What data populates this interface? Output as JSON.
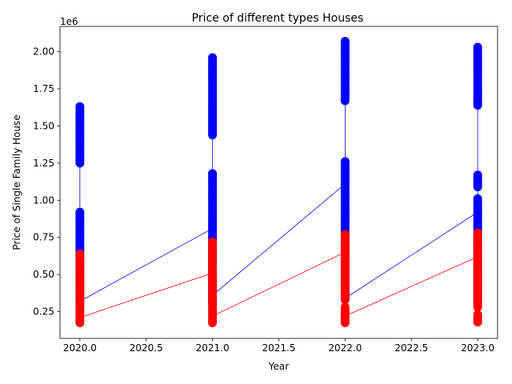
{
  "chart_data": {
    "type": "line",
    "title": "Price of different types Houses",
    "xlabel": "Year",
    "ylabel": "Price of Single Family House",
    "y_offset_label": "1e6",
    "xlim": [
      2019.85,
      2023.15
    ],
    "ylim": [
      70000,
      2170000
    ],
    "x_ticks": [
      2020.0,
      2020.5,
      2021.0,
      2021.5,
      2022.0,
      2022.5,
      2023.0
    ],
    "x_tick_labels": [
      "2020.0",
      "2020.5",
      "2021.0",
      "2021.5",
      "2022.0",
      "2022.5",
      "2023.0"
    ],
    "y_ticks": [
      250000,
      500000,
      750000,
      1000000,
      1250000,
      1500000,
      1750000,
      2000000
    ],
    "y_tick_labels": [
      "0.25",
      "0.50",
      "0.75",
      "1.00",
      "1.25",
      "1.50",
      "1.75",
      "2.00"
    ],
    "grid": false,
    "legend": "none",
    "series": [
      {
        "color": "#0000ff",
        "point_ranges": [
          {
            "x": 2020,
            "low": 300000,
            "high": 920000
          },
          {
            "x": 2020,
            "low": 1250000,
            "high": 1630000
          },
          {
            "x": 2021,
            "low": 300000,
            "high": 1180000
          },
          {
            "x": 2021,
            "low": 1440000,
            "high": 1960000
          },
          {
            "x": 2022,
            "low": 340000,
            "high": 1260000
          },
          {
            "x": 2022,
            "low": 1670000,
            "high": 2070000
          },
          {
            "x": 2023,
            "low": 310000,
            "high": 1010000
          },
          {
            "x": 2023,
            "low": 1090000,
            "high": 1170000
          },
          {
            "x": 2023,
            "low": 1640000,
            "high": 2030000
          }
        ],
        "segments": [
          [
            [
              2020,
              320000
            ],
            [
              2020,
              1630000
            ]
          ],
          [
            [
              2020,
              320000
            ],
            [
              2021,
              810000
            ]
          ],
          [
            [
              2021,
              360000
            ],
            [
              2021,
              1960000
            ]
          ],
          [
            [
              2021,
              360000
            ],
            [
              2022,
              1110000
            ]
          ],
          [
            [
              2022,
              340000
            ],
            [
              2022,
              2070000
            ]
          ],
          [
            [
              2022,
              340000
            ],
            [
              2023,
              920000
            ]
          ],
          [
            [
              2023,
              310000
            ],
            [
              2023,
              2030000
            ]
          ]
        ]
      },
      {
        "color": "#ff0000",
        "point_ranges": [
          {
            "x": 2020,
            "low": 175000,
            "high": 640000
          },
          {
            "x": 2021,
            "low": 175000,
            "high": 720000
          },
          {
            "x": 2022,
            "low": 175000,
            "high": 280000
          },
          {
            "x": 2022,
            "low": 330000,
            "high": 770000
          },
          {
            "x": 2023,
            "low": 180000,
            "high": 230000
          },
          {
            "x": 2023,
            "low": 280000,
            "high": 780000
          }
        ],
        "segments": [
          [
            [
              2020,
              210000
            ],
            [
              2021,
              510000
            ]
          ],
          [
            [
              2021,
              220000
            ],
            [
              2022,
              650000
            ]
          ],
          [
            [
              2022,
              220000
            ],
            [
              2023,
              620000
            ]
          ]
        ]
      }
    ]
  }
}
